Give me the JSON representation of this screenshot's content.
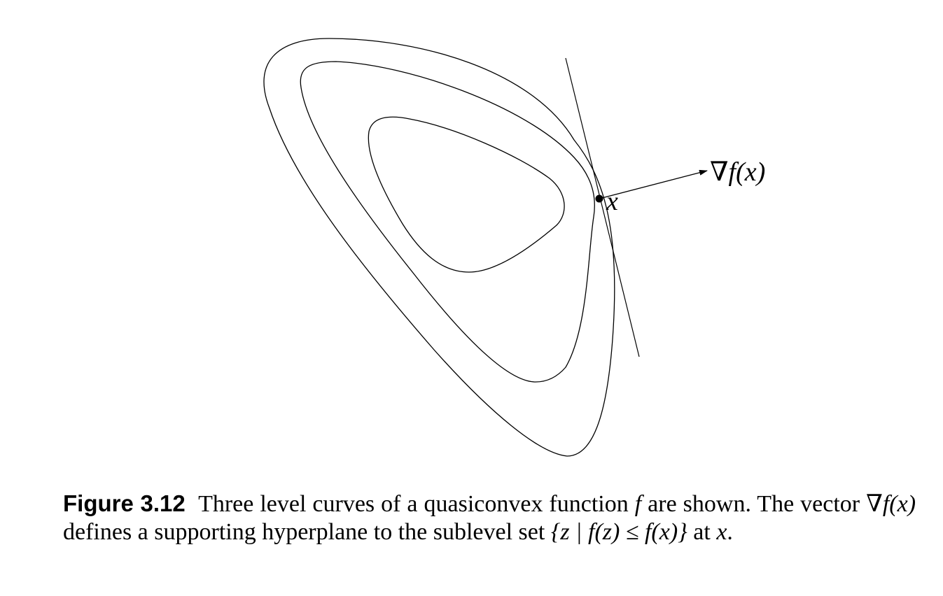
{
  "figure": {
    "point_label": "x",
    "gradient_label": "∇f(x)"
  },
  "caption": {
    "label": "Figure 3.12",
    "seg1": "Three level curves of a quasiconvex function ",
    "f1": "f",
    "seg2": " are shown. The vector ",
    "grad": "∇f(x)",
    "seg3": " defines a supporting hyperplane to the sublevel set ",
    "set": "{z | f(z) ≤ f(x)}",
    "seg4": " at ",
    "x": "x",
    "seg5": "."
  }
}
